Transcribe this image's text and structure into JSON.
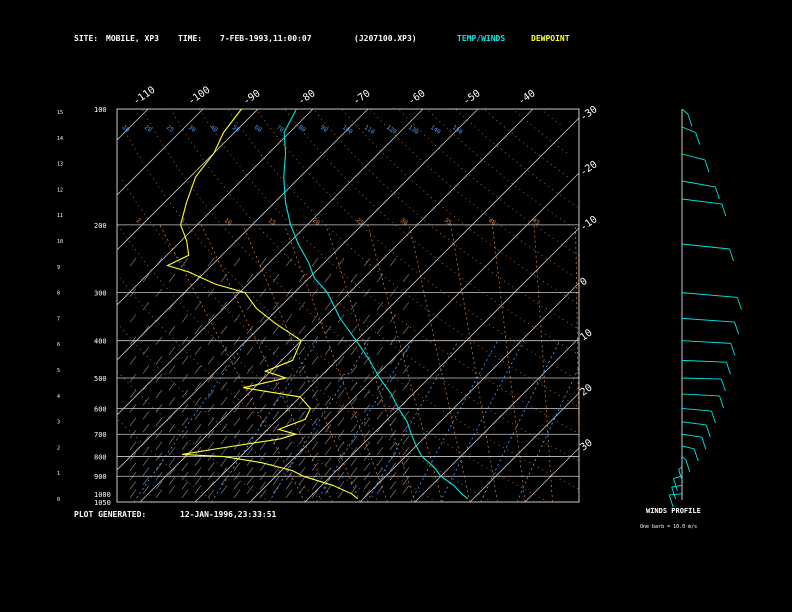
{
  "header": {
    "site_label": "SITE:",
    "site_value": "MOBILE, XP3",
    "time_label": "TIME:",
    "time_value": "7-FEB-1993,11:00:07",
    "file_id": "(J207100.XP3)",
    "legend_temp": "TEMP/WINDS",
    "legend_dewpoint": "DEWPOINT"
  },
  "footer": {
    "generated_label": "PLOT GENERATED:",
    "generated_value": "12-JAN-1996,23:33:51"
  },
  "winds_panel": {
    "title": "WINDS PROFILE",
    "subtitle": "One barb = 10.0 m/s"
  },
  "colors": {
    "temp": "#00e5e5",
    "dewpoint": "#ffff33",
    "isobar": "#c8c8c8",
    "isotherm": "#c8c8c8",
    "dry_adiabat": "#e08040",
    "moist_adiabat": "#e08040",
    "mixing_ratio": "#40a0ff",
    "text": "#ffffff"
  },
  "chart_data": {
    "type": "line",
    "chart_kind": "skew-t",
    "x_scale": "skewed temperature",
    "y_scale": "log pressure",
    "temp_ticks_top": [
      "-110",
      "-100",
      "-90",
      "-80",
      "-70",
      "-60",
      "-50",
      "-40"
    ],
    "temp_ticks_right": [
      "-30",
      "-20",
      "-10",
      "0",
      "10",
      "20",
      "30"
    ],
    "pressure_ticks": [
      "100",
      "200",
      "300",
      "400",
      "500",
      "600",
      "700",
      "800",
      "900",
      "1000",
      "1050"
    ],
    "height_ticks": [
      "15",
      "14",
      "13",
      "12",
      "11",
      "10",
      "9",
      "8",
      "7",
      "6",
      "5",
      "4",
      "3",
      "2",
      "1",
      "0"
    ],
    "mixing_ratio_labels": [
      "16",
      "20",
      "25",
      "30",
      "40",
      "50",
      "60",
      "70",
      "80",
      "90",
      "100",
      "110",
      "120",
      "130",
      "140",
      "150"
    ],
    "adiabat_labels": [
      "2",
      "5",
      "10",
      "15",
      "20",
      "25",
      "30",
      "35",
      "40",
      "45"
    ],
    "series": [
      {
        "name": "TEMP/WINDS",
        "points": [
          [
            100,
            -83
          ],
          [
            115,
            -81
          ],
          [
            130,
            -77
          ],
          [
            150,
            -73
          ],
          [
            175,
            -68
          ],
          [
            200,
            -63
          ],
          [
            225,
            -58
          ],
          [
            250,
            -53
          ],
          [
            275,
            -49
          ],
          [
            300,
            -44
          ],
          [
            350,
            -37
          ],
          [
            400,
            -30
          ],
          [
            450,
            -24
          ],
          [
            500,
            -19
          ],
          [
            550,
            -14
          ],
          [
            600,
            -10
          ],
          [
            650,
            -6
          ],
          [
            700,
            -3
          ],
          [
            750,
            0
          ],
          [
            800,
            3
          ],
          [
            850,
            7
          ],
          [
            900,
            10
          ],
          [
            950,
            14
          ],
          [
            1000,
            17
          ],
          [
            1030,
            19
          ]
        ]
      },
      {
        "name": "DEWPOINT",
        "points": [
          [
            100,
            -93
          ],
          [
            115,
            -92
          ],
          [
            130,
            -90
          ],
          [
            150,
            -89
          ],
          [
            175,
            -86
          ],
          [
            200,
            -83
          ],
          [
            220,
            -79
          ],
          [
            240,
            -76
          ],
          [
            255,
            -78
          ],
          [
            265,
            -73
          ],
          [
            285,
            -66
          ],
          [
            300,
            -59
          ],
          [
            330,
            -54
          ],
          [
            360,
            -48
          ],
          [
            400,
            -40
          ],
          [
            450,
            -38
          ],
          [
            480,
            -41
          ],
          [
            500,
            -36
          ],
          [
            530,
            -42
          ],
          [
            560,
            -30
          ],
          [
            600,
            -26
          ],
          [
            640,
            -25
          ],
          [
            680,
            -28
          ],
          [
            700,
            -24
          ],
          [
            720,
            -26
          ],
          [
            760,
            -35
          ],
          [
            790,
            -41
          ],
          [
            800,
            -33
          ],
          [
            830,
            -25
          ],
          [
            870,
            -18
          ],
          [
            900,
            -15
          ],
          [
            950,
            -8
          ],
          [
            1000,
            -3
          ],
          [
            1030,
            -1
          ]
        ]
      }
    ],
    "winds": [
      [
        100,
        20,
        190
      ],
      [
        120,
        25,
        200
      ],
      [
        150,
        30,
        210
      ],
      [
        180,
        35,
        220
      ],
      [
        200,
        35,
        230
      ],
      [
        250,
        40,
        235
      ],
      [
        300,
        45,
        240
      ],
      [
        350,
        40,
        245
      ],
      [
        400,
        35,
        250
      ],
      [
        450,
        30,
        255
      ],
      [
        500,
        25,
        260
      ],
      [
        550,
        25,
        250
      ],
      [
        600,
        20,
        240
      ],
      [
        650,
        18,
        230
      ],
      [
        700,
        15,
        225
      ],
      [
        750,
        12,
        210
      ],
      [
        800,
        10,
        190
      ],
      [
        850,
        8,
        170
      ],
      [
        900,
        6,
        150
      ],
      [
        950,
        5,
        140
      ],
      [
        1000,
        4,
        120
      ]
    ]
  }
}
